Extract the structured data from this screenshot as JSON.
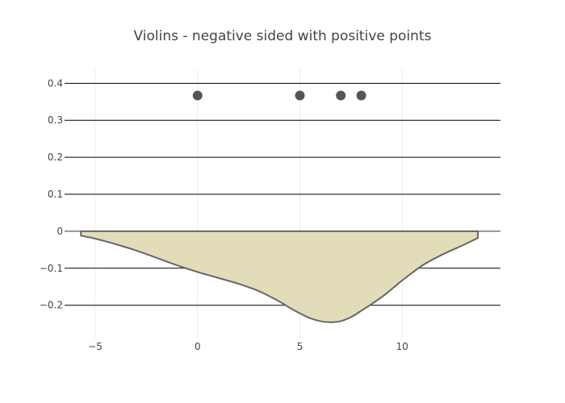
{
  "chart_data": {
    "type": "violin",
    "title": "Violins - negative sided with positive points",
    "xlabel": "",
    "ylabel": "",
    "xlim": [
      -6.5,
      14.8
    ],
    "ylim": [
      -0.29,
      0.44
    ],
    "x_ticks": [
      {
        "value": -5,
        "label": "−5"
      },
      {
        "value": 0,
        "label": "0"
      },
      {
        "value": 5,
        "label": "5"
      },
      {
        "value": 10,
        "label": "10"
      }
    ],
    "y_ticks": [
      {
        "value": 0.4,
        "label": "0.4"
      },
      {
        "value": 0.3,
        "label": "0.3"
      },
      {
        "value": 0.2,
        "label": "0.2"
      },
      {
        "value": 0.1,
        "label": "0.1"
      },
      {
        "value": 0,
        "label": "0"
      },
      {
        "value": -0.1,
        "label": "−0.1"
      },
      {
        "value": -0.2,
        "label": "−0.2"
      }
    ],
    "grid": true,
    "legend": "none",
    "colors": {
      "fill": "#e3dcb8",
      "line": "#666666",
      "points": "#555555",
      "grid": "#000000"
    },
    "points": {
      "y": 0.367,
      "x": [
        0,
        5,
        7,
        8
      ]
    },
    "density": {
      "side": "negative",
      "x": [
        -5.7,
        -5,
        -4,
        -3,
        -2,
        -1,
        0,
        1,
        2,
        3,
        4,
        4.5,
        5,
        5.5,
        6,
        6.5,
        7,
        7.5,
        8,
        9,
        10,
        11,
        12,
        13,
        13.7
      ],
      "y": [
        -0.012,
        -0.02,
        -0.035,
        -0.052,
        -0.072,
        -0.092,
        -0.11,
        -0.126,
        -0.142,
        -0.162,
        -0.19,
        -0.207,
        -0.222,
        -0.235,
        -0.243,
        -0.246,
        -0.243,
        -0.232,
        -0.215,
        -0.178,
        -0.133,
        -0.092,
        -0.062,
        -0.037,
        -0.018
      ]
    }
  }
}
